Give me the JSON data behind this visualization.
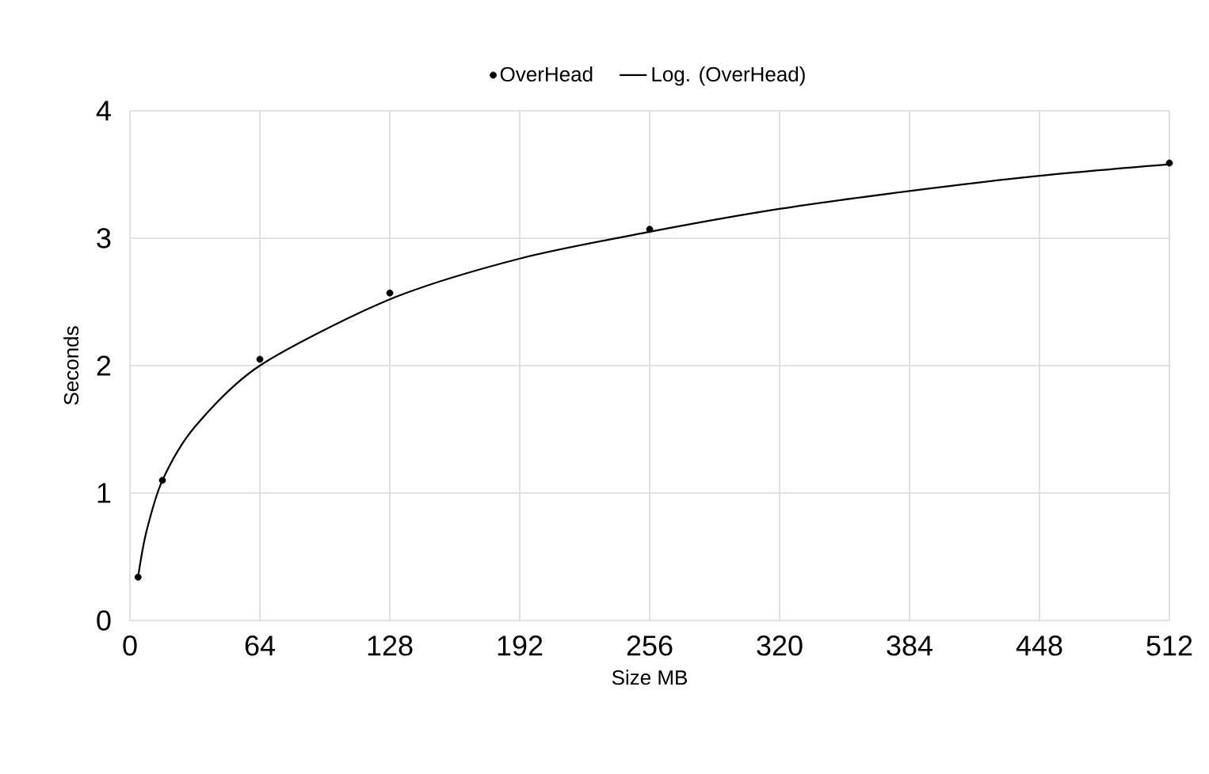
{
  "chart_data": {
    "type": "scatter",
    "xlabel": "Size MB",
    "ylabel": "Seconds",
    "series": [
      {
        "name": "OverHead",
        "color": "#000000",
        "marker": "circle",
        "x": [
          4,
          16,
          64,
          128,
          256,
          512
        ],
        "values": [
          0.34,
          1.1,
          2.05,
          2.57,
          3.07,
          3.59
        ]
      },
      {
        "name": "Log. (OverHead)",
        "type": "line",
        "color": "#000000",
        "marker": "none",
        "line_style": "solid",
        "x": [
          4,
          8,
          16,
          32,
          64,
          128,
          192,
          256,
          320,
          384,
          448,
          512
        ],
        "values": [
          0.34,
          0.69,
          1.1,
          1.52,
          2.0,
          2.52,
          2.84,
          3.05,
          3.23,
          3.37,
          3.49,
          3.58
        ]
      }
    ],
    "xlim": [
      0,
      512
    ],
    "xticks": [
      0,
      64,
      128,
      192,
      256,
      320,
      384,
      448,
      512
    ],
    "ylim": [
      0,
      4
    ],
    "yticks": [
      0,
      1,
      2,
      3,
      4
    ],
    "grid": true,
    "legend": "top"
  }
}
